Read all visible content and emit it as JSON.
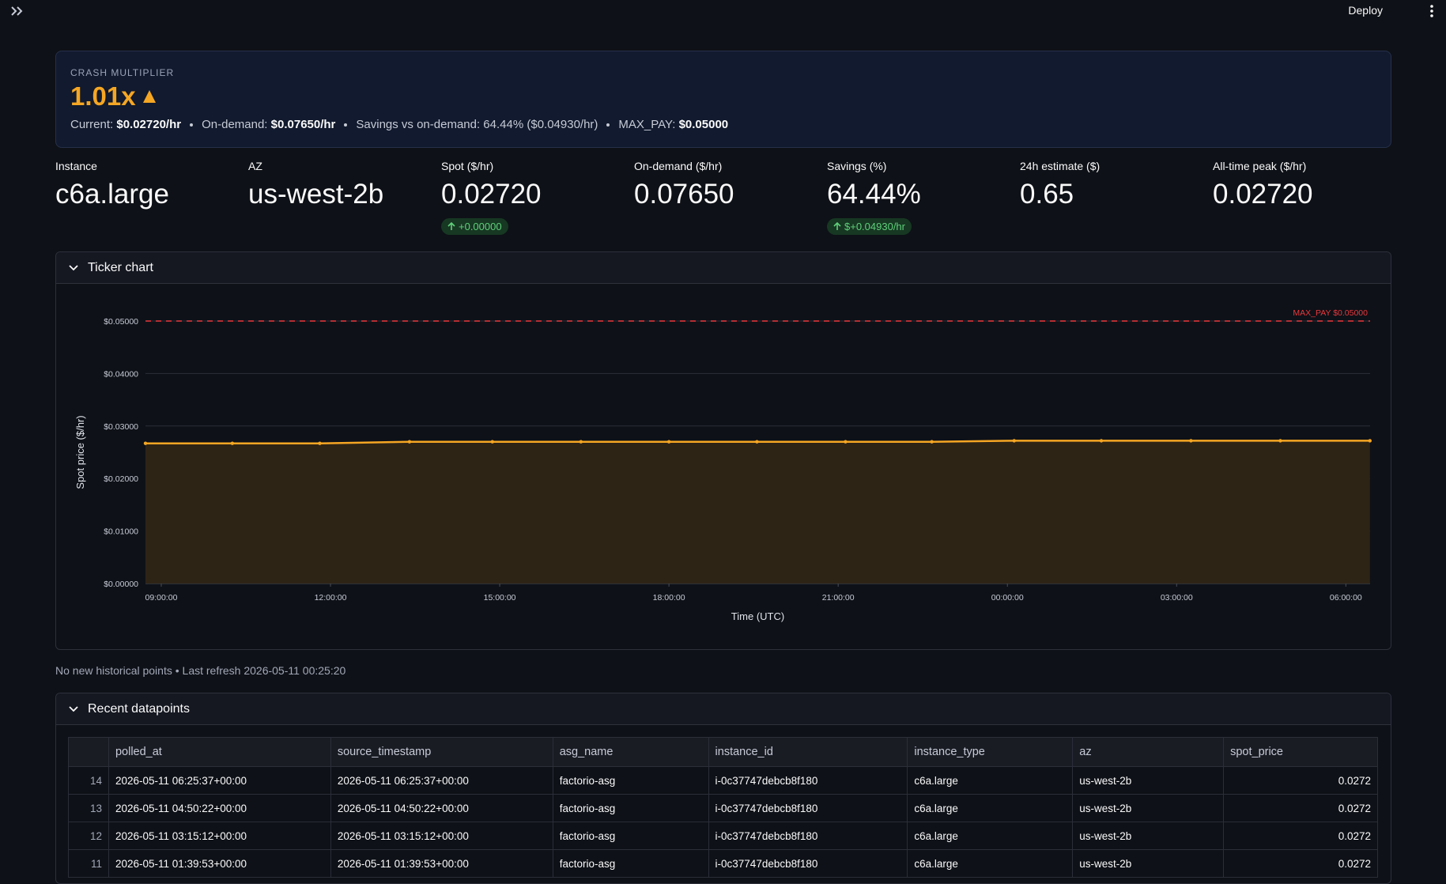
{
  "toolbar": {
    "deploy": "Deploy"
  },
  "banner": {
    "kicker": "CRASH MULTIPLIER",
    "multiplier": "1.01x",
    "details": [
      {
        "label": "Current:",
        "value": "$0.02720/hr"
      },
      {
        "label": "On-demand:",
        "value": "$0.07650/hr"
      },
      {
        "label": "Savings vs on-demand: 64.44% ($0.04930/hr)"
      },
      {
        "label": "MAX_PAY:",
        "value": "$0.05000"
      }
    ]
  },
  "metrics": [
    {
      "label": "Instance",
      "value": "c6a.large"
    },
    {
      "label": "AZ",
      "value": "us-west-2b"
    },
    {
      "label": "Spot ($/hr)",
      "value": "0.02720",
      "delta": "+0.00000"
    },
    {
      "label": "On-demand ($/hr)",
      "value": "0.07650"
    },
    {
      "label": "Savings (%)",
      "value": "64.44%",
      "delta": "$+0.04930/hr"
    },
    {
      "label": "24h estimate ($)",
      "value": "0.65"
    },
    {
      "label": "All-time peak ($/hr)",
      "value": "0.02720"
    }
  ],
  "ticker_section": {
    "title": "Ticker chart"
  },
  "chart_data": {
    "type": "area",
    "x_label": "Time (UTC)",
    "y_label": "Spot price ($/hr)",
    "x": [
      8.72,
      10.26,
      11.81,
      13.4,
      14.87,
      16.44,
      18.0,
      19.56,
      21.13,
      22.66,
      24.12,
      25.665,
      27.254,
      28.839,
      30.427
    ],
    "series": [
      {
        "name": "spot_price",
        "color": "#f5a623",
        "values": [
          0.0267,
          0.0267,
          0.0267,
          0.027,
          0.027,
          0.027,
          0.027,
          0.027,
          0.027,
          0.027,
          0.0272,
          0.0272,
          0.0272,
          0.0272,
          0.0272
        ]
      }
    ],
    "xlim": [
      8.72,
      30.43
    ],
    "xticks": [
      {
        "value": 9,
        "label": "09:00:00"
      },
      {
        "value": 12,
        "label": "12:00:00"
      },
      {
        "value": 15,
        "label": "15:00:00"
      },
      {
        "value": 18,
        "label": "18:00:00"
      },
      {
        "value": 21,
        "label": "21:00:00"
      },
      {
        "value": 24,
        "label": "00:00:00"
      },
      {
        "value": 27,
        "label": "03:00:00"
      },
      {
        "value": 30,
        "label": "06:00:00"
      }
    ],
    "ylim": [
      0,
      0.05
    ],
    "yticks": [
      {
        "value": 0,
        "label": "$0.00000"
      },
      {
        "value": 0.01,
        "label": "$0.01000"
      },
      {
        "value": 0.02,
        "label": "$0.02000"
      },
      {
        "value": 0.03,
        "label": "$0.03000"
      },
      {
        "value": 0.04,
        "label": "$0.04000"
      },
      {
        "value": 0.05,
        "label": "$0.05000"
      }
    ],
    "grid": true,
    "threshold": {
      "value": 0.05,
      "label": "MAX_PAY $0.05000",
      "color": "#e8383d"
    }
  },
  "status": "No new historical points • Last refresh 2026-05-11 00:25:20",
  "table_section": {
    "title": "Recent datapoints"
  },
  "table": {
    "columns": [
      "polled_at",
      "source_timestamp",
      "asg_name",
      "instance_id",
      "instance_type",
      "az",
      "spot_price"
    ],
    "rows": [
      [
        14,
        "2026-05-11 06:25:37+00:00",
        "2026-05-11 06:25:37+00:00",
        "factorio-asg",
        "i-0c37747debcb8f180",
        "c6a.large",
        "us-west-2b",
        0.0272
      ],
      [
        13,
        "2026-05-11 04:50:22+00:00",
        "2026-05-11 04:50:22+00:00",
        "factorio-asg",
        "i-0c37747debcb8f180",
        "c6a.large",
        "us-west-2b",
        0.0272
      ],
      [
        12,
        "2026-05-11 03:15:12+00:00",
        "2026-05-11 03:15:12+00:00",
        "factorio-asg",
        "i-0c37747debcb8f180",
        "c6a.large",
        "us-west-2b",
        0.0272
      ],
      [
        11,
        "2026-05-11 01:39:53+00:00",
        "2026-05-11 01:39:53+00:00",
        "factorio-asg",
        "i-0c37747debcb8f180",
        "c6a.large",
        "us-west-2b",
        0.0272
      ]
    ]
  }
}
